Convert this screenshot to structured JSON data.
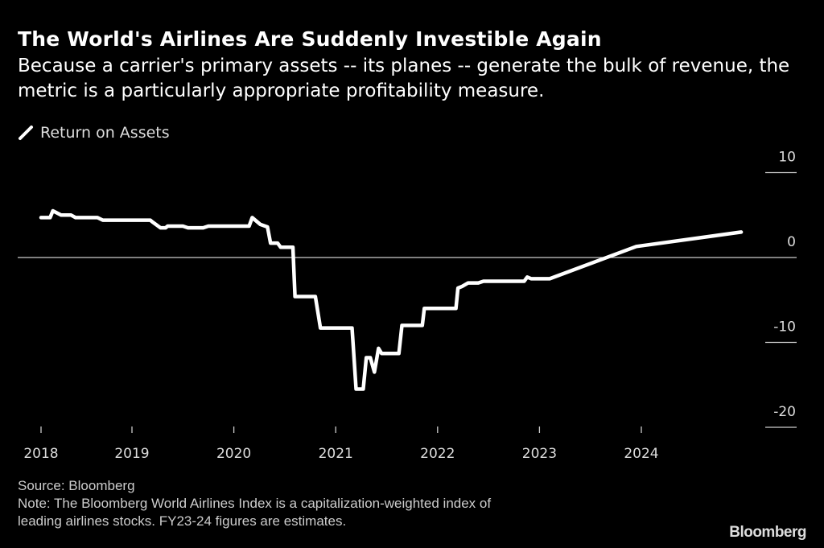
{
  "header": {
    "title": "The World's Airlines Are Suddenly Investible Again",
    "subtitle": "Because a carrier's primary assets -- its planes -- generate the bulk of revenue, the metric is a particularly appropriate profitability measure."
  },
  "legend": {
    "items": [
      {
        "label": "Return on Assets",
        "color": "#ffffff"
      }
    ]
  },
  "footer": {
    "source": "Source: Bloomberg",
    "note_line1": "Note: The Bloomberg World Airlines Index is a capitalization-weighted index of",
    "note_line2": "leading airlines stocks. FY23-24 figures are estimates."
  },
  "brand": "Bloomberg",
  "chart_data": {
    "type": "line",
    "title": "The World's Airlines Are Suddenly Investible Again",
    "xlabel": "",
    "ylabel": "",
    "ylim": [
      -20,
      10
    ],
    "xlim": [
      2018,
      2025.4
    ],
    "y_ticks": [
      10,
      0,
      -10,
      -20
    ],
    "y_tick_labels": [
      "10",
      "0",
      "-10",
      "-20"
    ],
    "x_ticks": [
      2018,
      2019,
      2020,
      2021,
      2022,
      2023,
      2024
    ],
    "x_tick_labels": [
      "2018",
      "2019",
      "2020",
      "2021",
      "2022",
      "2023",
      "2024"
    ],
    "zero_line": true,
    "legend_position": "top-left",
    "series": [
      {
        "name": "Return on Assets",
        "color": "#ffffff",
        "x": [
          2018.0,
          2018.1,
          2018.13,
          2018.22,
          2018.33,
          2018.38,
          2018.62,
          2018.68,
          2018.9,
          2019.0,
          2019.18,
          2019.2,
          2019.28,
          2019.33,
          2019.35,
          2019.5,
          2019.55,
          2019.68,
          2019.7,
          2019.75,
          2019.8,
          2020.0,
          2020.15,
          2020.18,
          2020.26,
          2020.33,
          2020.36,
          2020.43,
          2020.46,
          2020.58,
          2020.6,
          2020.67,
          2020.8,
          2020.85,
          2021.16,
          2021.2,
          2021.27,
          2021.3,
          2021.34,
          2021.38,
          2021.42,
          2021.45,
          2021.62,
          2021.65,
          2021.85,
          2021.87,
          2022.18,
          2022.2,
          2022.24,
          2022.3,
          2022.4,
          2022.45,
          2022.85,
          2022.88,
          2022.92,
          2023.1,
          2023.95,
          2024.98
        ],
        "values": [
          4.7,
          4.7,
          5.5,
          5.0,
          5.0,
          4.7,
          4.7,
          4.4,
          4.4,
          4.4,
          4.4,
          4.2,
          3.5,
          3.5,
          3.7,
          3.7,
          3.5,
          3.5,
          3.5,
          3.7,
          3.7,
          3.7,
          3.7,
          4.7,
          3.9,
          3.6,
          1.7,
          1.7,
          1.2,
          1.2,
          -4.6,
          -4.6,
          -4.6,
          -8.3,
          -8.3,
          -15.5,
          -15.5,
          -11.8,
          -11.8,
          -13.5,
          -10.7,
          -11.3,
          -11.3,
          -8.0,
          -8.0,
          -6.0,
          -6.0,
          -3.6,
          -3.4,
          -3.0,
          -3.0,
          -2.8,
          -2.8,
          -2.3,
          -2.5,
          -2.5,
          1.3,
          3.0
        ]
      }
    ]
  }
}
